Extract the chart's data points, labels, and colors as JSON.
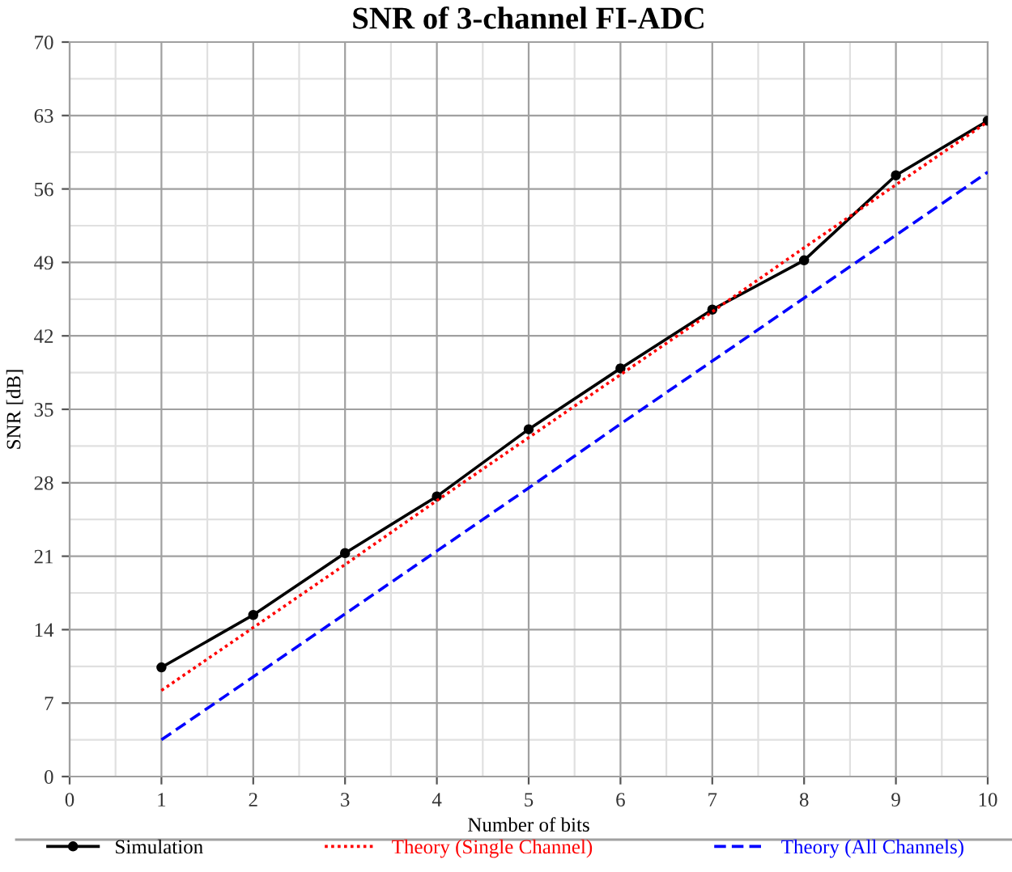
{
  "chart_data": {
    "type": "line",
    "title": "SNR of 3-channel FI-ADC",
    "xlabel": "Number of bits",
    "ylabel": "SNR [dB]",
    "x": [
      1,
      2,
      3,
      4,
      5,
      6,
      7,
      8,
      9,
      10
    ],
    "series": [
      {
        "name": "Simulation",
        "color": "#000000",
        "values": [
          10.4,
          15.4,
          21.3,
          26.7,
          33.1,
          38.9,
          44.5,
          49.2,
          57.3,
          62.5
        ],
        "marker": "circle",
        "line_style": "solid"
      },
      {
        "name": "Theory (Single Channel)",
        "color": "#ff0000",
        "values": [
          8.2,
          14.2,
          20.2,
          26.3,
          32.3,
          38.3,
          44.3,
          50.4,
          56.4,
          62.4
        ],
        "marker": "none",
        "line_style": "dotted"
      },
      {
        "name": "Theory (All Channels)",
        "color": "#0000ff",
        "values": [
          3.5,
          9.5,
          15.5,
          21.5,
          27.5,
          33.6,
          39.6,
          45.6,
          51.6,
          57.6
        ],
        "marker": "none",
        "line_style": "dashed"
      }
    ],
    "xlim": [
      0,
      10
    ],
    "xticks": [
      0,
      1,
      2,
      3,
      4,
      5,
      6,
      7,
      8,
      9,
      10
    ],
    "ylim": [
      0,
      70
    ],
    "yticks": [
      0,
      7,
      14,
      21,
      28,
      35,
      42,
      49,
      56,
      63,
      70
    ],
    "grid": true,
    "legend": "bottom"
  }
}
